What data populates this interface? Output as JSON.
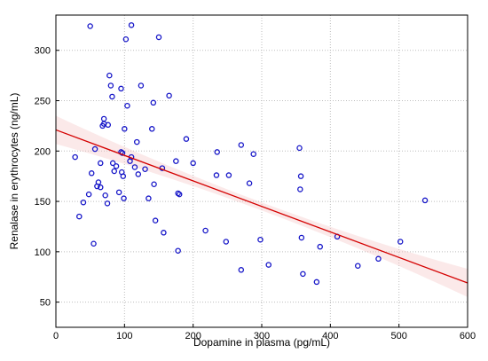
{
  "chart_data": {
    "type": "scatter",
    "xlabel": "Dopamine in plasma (pg/mL)",
    "ylabel": "Renalase in erythrocytes (ng/mL)",
    "xlim": [
      0,
      600
    ],
    "ylim": [
      25,
      335
    ],
    "xticks": [
      0,
      100,
      200,
      300,
      400,
      500,
      600
    ],
    "yticks": [
      50,
      100,
      150,
      200,
      250,
      300
    ],
    "grid": true,
    "colors": {
      "points": "#1515c8",
      "trend": "#d40000",
      "band": "#f3c0c0"
    },
    "trendline": {
      "x": [
        0,
        600
      ],
      "y": [
        221,
        69
      ]
    },
    "series": [
      {
        "x": [
          28,
          34,
          40,
          48,
          50,
          52,
          55,
          57,
          60,
          62,
          65,
          65,
          68,
          70,
          70,
          72,
          75,
          76,
          78,
          80,
          82,
          83,
          85,
          88,
          92,
          95,
          95,
          96,
          97,
          98,
          99,
          100,
          102,
          104,
          108,
          110,
          110,
          115,
          118,
          120,
          124,
          130,
          135,
          140,
          142,
          143,
          145,
          150,
          155,
          157,
          165,
          175,
          178,
          178,
          180,
          190,
          200,
          218,
          234,
          235,
          248,
          252,
          270,
          270,
          282,
          288,
          298,
          310,
          355,
          356,
          357,
          358,
          360,
          380,
          385,
          410,
          440,
          470,
          502,
          538
        ],
        "y": [
          194,
          135,
          149,
          157,
          324,
          178,
          108,
          202,
          165,
          169,
          164,
          188,
          225,
          232,
          227,
          156,
          148,
          226,
          275,
          265,
          254,
          188,
          180,
          185,
          159,
          262,
          199,
          179,
          198,
          175,
          153,
          222,
          311,
          245,
          190,
          194,
          325,
          184,
          209,
          177,
          265,
          182,
          153,
          222,
          248,
          167,
          131,
          313,
          183,
          119,
          255,
          190,
          158,
          101,
          157,
          212,
          188,
          121,
          176,
          199,
          110,
          176,
          206,
          82,
          168,
          197,
          112,
          87,
          203,
          162,
          175,
          114,
          78,
          70,
          105,
          115,
          86,
          93,
          110,
          151
        ]
      }
    ]
  }
}
